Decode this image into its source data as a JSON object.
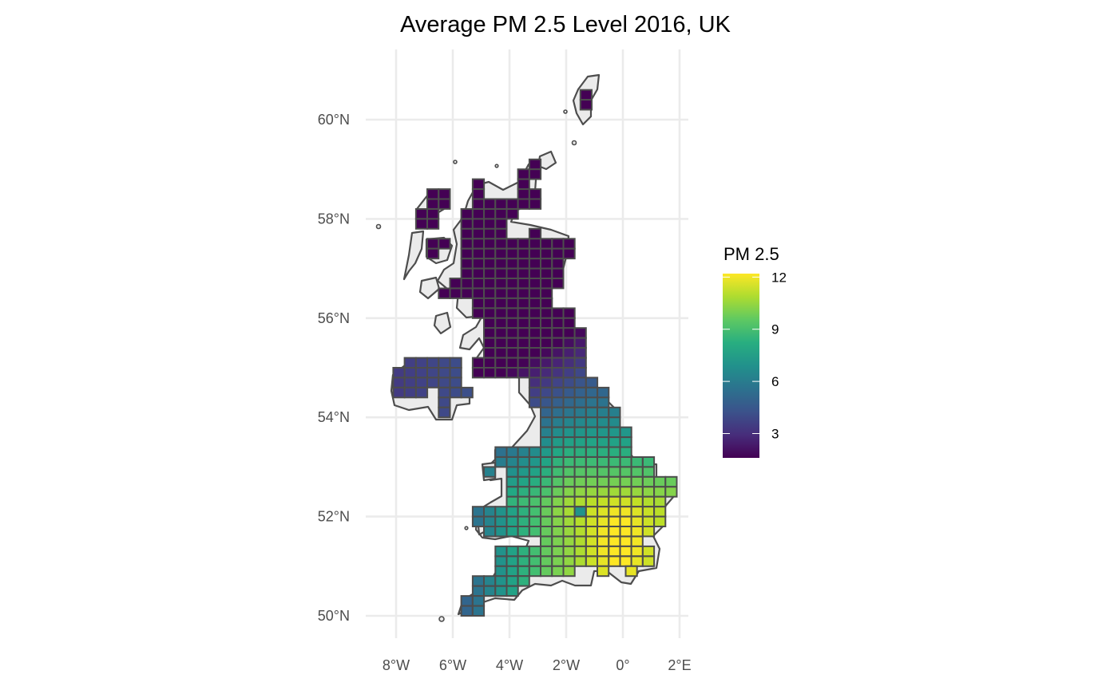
{
  "map": {
    "title": "Average PM 2.5  Level 2016, UK",
    "region": "UK",
    "year": "2016",
    "x_ticks": [
      {
        "value": -8,
        "label": "8°W"
      },
      {
        "value": -6,
        "label": "6°W"
      },
      {
        "value": -4,
        "label": "4°W"
      },
      {
        "value": -2,
        "label": "2°W"
      },
      {
        "value": 0,
        "label": "0°"
      },
      {
        "value": 2,
        "label": "2°E"
      }
    ],
    "y_ticks": [
      {
        "value": 50,
        "label": "50°N"
      },
      {
        "value": 52,
        "label": "52°N"
      },
      {
        "value": 54,
        "label": "54°N"
      },
      {
        "value": 56,
        "label": "56°N"
      },
      {
        "value": 58,
        "label": "58°N"
      },
      {
        "value": 60,
        "label": "60°N"
      }
    ],
    "lon_range": [
      -8.7,
      2.35
    ],
    "lat_range": [
      49.6,
      61.0
    ],
    "grid": true,
    "color_scale": "viridis",
    "land_fill": "#ebebeb",
    "outline_color": "#4d4d4d"
  },
  "legend": {
    "title": "PM 2.5",
    "placement": "right",
    "min": 1.6,
    "max": 12.2,
    "ticks": [
      {
        "value": 3,
        "label": "3"
      },
      {
        "value": 6,
        "label": "6"
      },
      {
        "value": 9,
        "label": "9"
      },
      {
        "value": 12,
        "label": "12"
      }
    ]
  }
}
